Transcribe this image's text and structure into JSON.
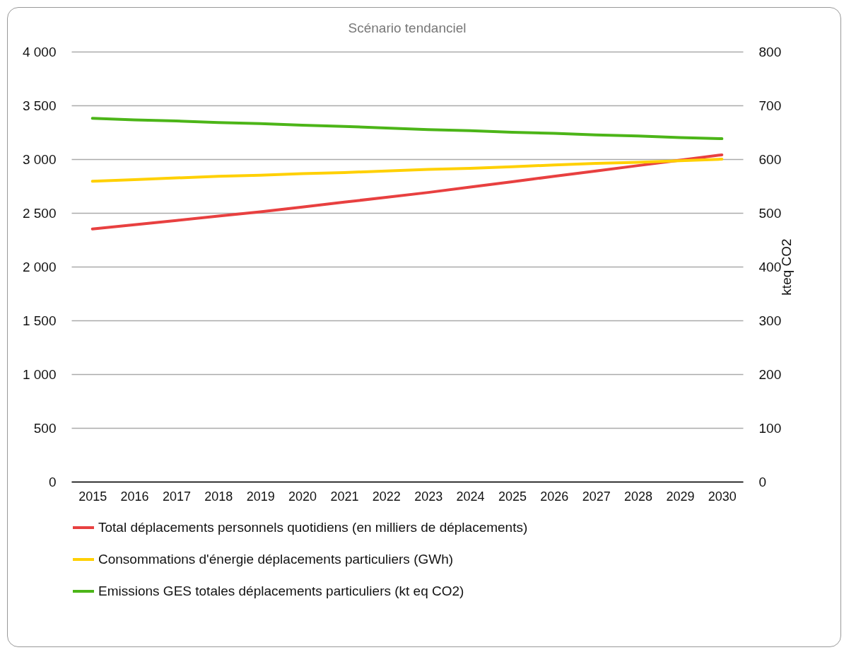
{
  "chart_data": {
    "type": "line",
    "title": "Scénario tendanciel",
    "y2label": "kteq CO2",
    "categories": [
      "2015",
      "2016",
      "2017",
      "2018",
      "2019",
      "2020",
      "2021",
      "2022",
      "2023",
      "2024",
      "2025",
      "2026",
      "2027",
      "2028",
      "2029",
      "2030"
    ],
    "series": [
      {
        "name": "Total déplacements personnels quotidiens (en milliers de déplacements)",
        "color": "#e84040",
        "values": [
          2350,
          2390,
          2430,
          2470,
          2510,
          2555,
          2600,
          2645,
          2690,
          2740,
          2790,
          2840,
          2890,
          2940,
          2990,
          3040
        ]
      },
      {
        "name": "Consommations d'énergie déplacements particuliers (GWh)",
        "color": "#ffd000",
        "values": [
          2795,
          2810,
          2825,
          2840,
          2850,
          2865,
          2875,
          2890,
          2905,
          2915,
          2930,
          2945,
          2960,
          2970,
          2985,
          3000
        ]
      },
      {
        "name": "Emissions GES totales déplacements particuliers (kt eq CO2)",
        "color": "#4cb518",
        "axis": "y2",
        "values": [
          676,
          673,
          671,
          668,
          666,
          663,
          661,
          658,
          655,
          653,
          650,
          648,
          645,
          643,
          640,
          638
        ]
      }
    ],
    "ylim": [
      0,
      4000
    ],
    "yticks": [
      {
        "value": 0,
        "label": "0"
      },
      {
        "value": 500,
        "label": "500"
      },
      {
        "value": 1000,
        "label": "1 000"
      },
      {
        "value": 1500,
        "label": "1 500"
      },
      {
        "value": 2000,
        "label": "2 000"
      },
      {
        "value": 2500,
        "label": "2 500"
      },
      {
        "value": 3000,
        "label": "3 000"
      },
      {
        "value": 3500,
        "label": "3 500"
      },
      {
        "value": 4000,
        "label": "4 000"
      }
    ],
    "y2lim": [
      0,
      800
    ],
    "y2ticks": [
      0,
      100,
      200,
      300,
      400,
      500,
      600,
      700,
      800
    ],
    "grid": "y",
    "legend": "bottom",
    "marker": "none",
    "line_style": "solid"
  }
}
